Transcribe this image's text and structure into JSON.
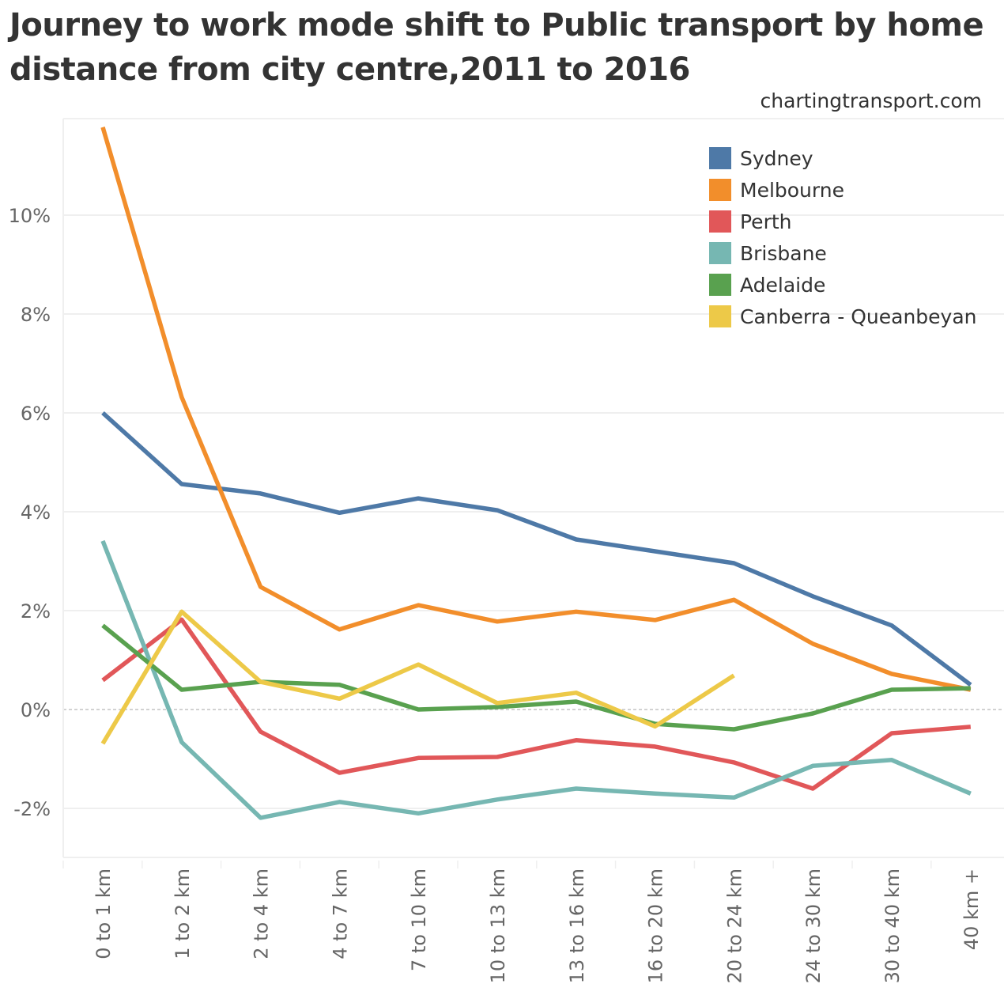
{
  "header": {
    "title": "Journey to work mode shift to Public transport by home distance from city centre,2011 to 2016",
    "source": "chartingtransport.com"
  },
  "chart_data": {
    "type": "line",
    "title": "Journey to work mode shift to Public transport by home distance from city centre,2011 to 2016",
    "xlabel": "",
    "ylabel": "",
    "categories": [
      "0 to 1 km",
      "1 to 2 km",
      "2 to 4 km",
      "4 to 7 km",
      "7 to 10 km",
      "10 to 13 km",
      "13 to 16 km",
      "16 to 20 km",
      "20 to 24 km",
      "24 to 30 km",
      "30 to 40 km",
      "40 km +"
    ],
    "yticks": [
      -2,
      0,
      2,
      4,
      6,
      8,
      10
    ],
    "ytick_labels": [
      "-2%",
      "0%",
      "2%",
      "4%",
      "6%",
      "8%",
      "10%"
    ],
    "ylim": [
      -3.0,
      12.3
    ],
    "grid": true,
    "zero_line": "dashed",
    "legend_position": "top-right",
    "series": [
      {
        "name": "Sydney",
        "color": "#4e79a7",
        "values": [
          6.0,
          4.56,
          4.37,
          3.98,
          4.27,
          4.03,
          3.44,
          3.2,
          2.96,
          2.29,
          1.7,
          0.5
        ]
      },
      {
        "name": "Melbourne",
        "color": "#f28e2b",
        "values": [
          11.78,
          6.32,
          2.48,
          1.62,
          2.11,
          1.78,
          1.98,
          1.81,
          2.22,
          1.33,
          0.72,
          0.4
        ]
      },
      {
        "name": "Perth",
        "color": "#e15759",
        "values": [
          0.59,
          1.82,
          -0.45,
          -1.28,
          -0.98,
          -0.96,
          -0.62,
          -0.75,
          -1.07,
          -1.6,
          -0.48,
          -0.35
        ]
      },
      {
        "name": "Brisbane",
        "color": "#76b7b2",
        "values": [
          3.41,
          -0.66,
          -2.19,
          -1.87,
          -2.1,
          -1.82,
          -1.6,
          -1.7,
          -1.78,
          -1.14,
          -1.02,
          -1.7
        ]
      },
      {
        "name": "Adelaide",
        "color": "#59a14f",
        "values": [
          1.7,
          0.4,
          0.56,
          0.5,
          0.0,
          0.05,
          0.16,
          -0.29,
          -0.4,
          -0.08,
          0.4,
          0.43
        ]
      },
      {
        "name": "Canberra - Queanbeyan",
        "color": "#edc948",
        "values": [
          -0.69,
          1.98,
          0.56,
          0.22,
          0.91,
          0.13,
          0.34,
          -0.34,
          0.69,
          null,
          null,
          null
        ]
      }
    ]
  }
}
